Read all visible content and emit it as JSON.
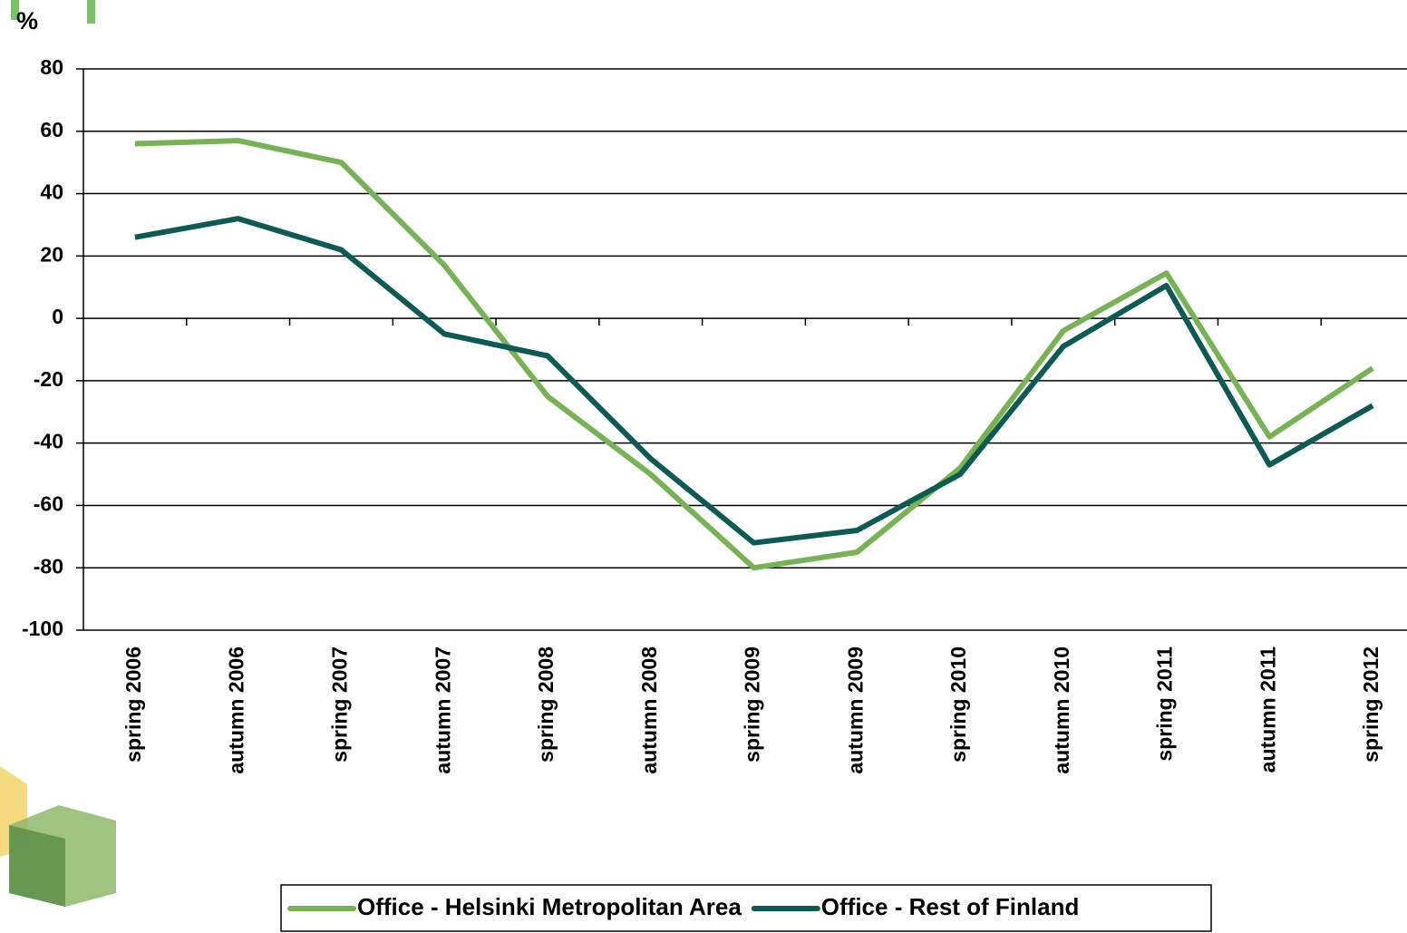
{
  "chart_data": {
    "type": "line",
    "y_label": "%",
    "categories": [
      "spring 2006",
      "autumn 2006",
      "spring 2007",
      "autumn 2007",
      "spring 2008",
      "autumn 2008",
      "spring 2009",
      "autumn 2009",
      "spring 2010",
      "autumn 2010",
      "spring 2011",
      "autumn 2011",
      "spring 2012"
    ],
    "series": [
      {
        "name": "Office - Helsinki Metropolitan Area",
        "color": "#77b255",
        "values": [
          56,
          57,
          50,
          17,
          -25,
          -50,
          -80,
          -75,
          -48,
          -4,
          14.5,
          -38,
          -16
        ]
      },
      {
        "name": "Office - Rest of Finland",
        "color": "#0d5a55",
        "values": [
          26,
          32,
          22,
          -5,
          -12,
          -45,
          -72,
          -68,
          -50,
          -9,
          10.5,
          -47,
          -28
        ]
      }
    ],
    "ylim": [
      -100,
      80
    ],
    "yticks": [
      -100,
      -80,
      -60,
      -40,
      -20,
      0,
      20,
      40,
      60,
      80
    ],
    "grid": true,
    "legend": "bottom"
  }
}
